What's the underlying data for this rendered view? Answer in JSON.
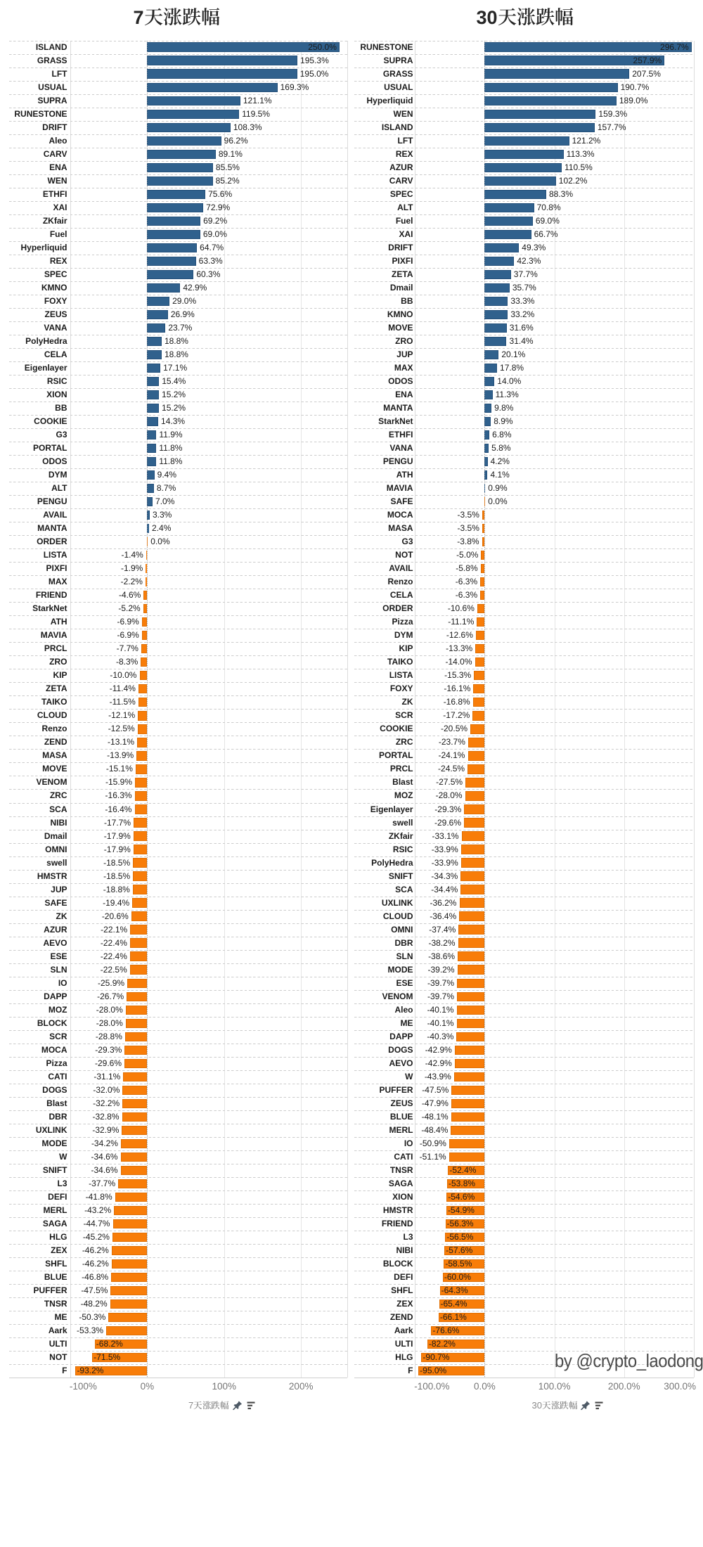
{
  "watermark": "by @crypto_laodong",
  "colors": {
    "positive_bar": "#30618D",
    "negative_bar": "#F87D09",
    "title_text": "#262626",
    "axis_text": "#757575",
    "caption_text": "#8A8A8A",
    "watermark_text": "#4A4A4A"
  },
  "chart_data": [
    {
      "type": "bar",
      "orientation": "horizontal",
      "title": "7天涨跌幅",
      "title_number": "7",
      "title_cjk": "天涨跌幅",
      "xlabel": "7天涨跌幅",
      "xlabel_number": "7",
      "xlabel_cjk": "天涨跌幅",
      "axis_icons": [
        "pin-icon",
        "sort-descending-icon"
      ],
      "x_tick_labels": [
        "-100%",
        "0%",
        "100%",
        "200%"
      ],
      "x_tick_values": [
        -100,
        0,
        100,
        200
      ],
      "xlim": [
        -100,
        260
      ],
      "grid": true,
      "value_suffix": "%",
      "categories": [
        "ISLAND",
        "GRASS",
        "LFT",
        "USUAL",
        "SUPRA",
        "RUNESTONE",
        "DRIFT",
        "Aleo",
        "CARV",
        "ENA",
        "WEN",
        "ETHFI",
        "XAI",
        "ZKfair",
        "Fuel",
        "Hyperliquid",
        "REX",
        "SPEC",
        "KMNO",
        "FOXY",
        "ZEUS",
        "VANA",
        "PolyHedra",
        "CELA",
        "Eigenlayer",
        "RSIC",
        "XION",
        "BB",
        "COOKIE",
        "G3",
        "PORTAL",
        "ODOS",
        "DYM",
        "ALT",
        "PENGU",
        "AVAIL",
        "MANTA",
        "ORDER",
        "LISTA",
        "PIXFI",
        "MAX",
        "FRIEND",
        "StarkNet",
        "ATH",
        "MAVIA",
        "PRCL",
        "ZRO",
        "KIP",
        "ZETA",
        "TAIKO",
        "CLOUD",
        "Renzo",
        "ZEND",
        "MASA",
        "MOVE",
        "VENOM",
        "ZRC",
        "SCA",
        "NIBI",
        "Dmail",
        "OMNI",
        "swell",
        "HMSTR",
        "JUP",
        "SAFE",
        "ZK",
        "AZUR",
        "AEVO",
        "ESE",
        "SLN",
        "IO",
        "DAPP",
        "MOZ",
        "BLOCK",
        "SCR",
        "MOCA",
        "Pizza",
        "CATI",
        "DOGS",
        "Blast",
        "DBR",
        "UXLINK",
        "MODE",
        "W",
        "SNIFT",
        "L3",
        "DEFI",
        "MERL",
        "SAGA",
        "HLG",
        "ZEX",
        "SHFL",
        "BLUE",
        "PUFFER",
        "TNSR",
        "ME",
        "Aark",
        "ULTI",
        "NOT",
        "F"
      ],
      "values": [
        250.0,
        195.3,
        195.0,
        169.3,
        121.1,
        119.5,
        108.3,
        96.2,
        89.1,
        85.5,
        85.2,
        75.6,
        72.9,
        69.2,
        69.0,
        64.7,
        63.3,
        60.3,
        42.9,
        29.0,
        26.9,
        23.7,
        18.8,
        18.8,
        17.1,
        15.4,
        15.2,
        15.2,
        14.3,
        11.9,
        11.8,
        11.8,
        9.4,
        8.7,
        7.0,
        3.3,
        2.4,
        0.0,
        -1.4,
        -1.9,
        -2.2,
        -4.6,
        -5.2,
        -6.9,
        -6.9,
        -7.7,
        -8.3,
        -10.0,
        -11.4,
        -11.5,
        -12.1,
        -12.5,
        -13.1,
        -13.9,
        -15.1,
        -15.9,
        -16.3,
        -16.4,
        -17.7,
        -17.9,
        -17.9,
        -18.5,
        -18.5,
        -18.8,
        -19.4,
        -20.6,
        -22.1,
        -22.4,
        -22.4,
        -22.5,
        -25.9,
        -26.7,
        -28.0,
        -28.0,
        -28.8,
        -29.3,
        -29.6,
        -31.1,
        -32.0,
        -32.2,
        -32.8,
        -32.9,
        -34.2,
        -34.6,
        -34.6,
        -37.7,
        -41.8,
        -43.2,
        -44.7,
        -45.2,
        -46.2,
        -46.2,
        -46.8,
        -47.5,
        -48.2,
        -50.3,
        -53.3,
        -68.2,
        -71.5,
        -93.2
      ]
    },
    {
      "type": "bar",
      "orientation": "horizontal",
      "title": "30天涨跌幅",
      "title_number": "30",
      "title_cjk": "天涨跌幅",
      "xlabel": "30天涨跌幅",
      "xlabel_number": "30",
      "xlabel_cjk": "天涨跌幅",
      "axis_icons": [
        "pin-icon",
        "sort-descending-icon"
      ],
      "x_tick_labels": [
        "-100.0%",
        "0.0%",
        "100.0%",
        "200.0%",
        "300.0%"
      ],
      "x_tick_values": [
        -100,
        0,
        100,
        200,
        300
      ],
      "xlim": [
        -100,
        300
      ],
      "grid": true,
      "value_suffix": "%",
      "categories": [
        "RUNESTONE",
        "SUPRA",
        "GRASS",
        "USUAL",
        "Hyperliquid",
        "WEN",
        "ISLAND",
        "LFT",
        "REX",
        "AZUR",
        "CARV",
        "SPEC",
        "ALT",
        "Fuel",
        "XAI",
        "DRIFT",
        "PIXFI",
        "ZETA",
        "Dmail",
        "BB",
        "KMNO",
        "MOVE",
        "ZRO",
        "JUP",
        "MAX",
        "ODOS",
        "ENA",
        "MANTA",
        "StarkNet",
        "ETHFI",
        "VANA",
        "PENGU",
        "ATH",
        "MAVIA",
        "SAFE",
        "MOCA",
        "MASA",
        "G3",
        "NOT",
        "AVAIL",
        "Renzo",
        "CELA",
        "ORDER",
        "Pizza",
        "DYM",
        "KIP",
        "TAIKO",
        "LISTA",
        "FOXY",
        "ZK",
        "SCR",
        "COOKIE",
        "ZRC",
        "PORTAL",
        "PRCL",
        "Blast",
        "MOZ",
        "Eigenlayer",
        "swell",
        "ZKfair",
        "RSIC",
        "PolyHedra",
        "SNIFT",
        "SCA",
        "UXLINK",
        "CLOUD",
        "OMNI",
        "DBR",
        "SLN",
        "MODE",
        "ESE",
        "VENOM",
        "Aleo",
        "ME",
        "DAPP",
        "DOGS",
        "AEVO",
        "W",
        "PUFFER",
        "ZEUS",
        "BLUE",
        "MERL",
        "IO",
        "CATI",
        "TNSR",
        "SAGA",
        "XION",
        "HMSTR",
        "FRIEND",
        "L3",
        "NIBI",
        "BLOCK",
        "DEFI",
        "SHFL",
        "ZEX",
        "ZEND",
        "Aark",
        "ULTI",
        "HLG",
        "F"
      ],
      "values": [
        296.7,
        257.9,
        207.5,
        190.7,
        189.0,
        159.3,
        157.7,
        121.2,
        113.3,
        110.5,
        102.2,
        88.3,
        70.8,
        69.0,
        66.7,
        49.3,
        42.3,
        37.7,
        35.7,
        33.3,
        33.2,
        31.6,
        31.4,
        20.1,
        17.8,
        14.0,
        11.3,
        9.8,
        8.9,
        6.8,
        5.8,
        4.2,
        4.1,
        0.9,
        0.0,
        -3.5,
        -3.5,
        -3.8,
        -5.0,
        -5.8,
        -6.3,
        -6.3,
        -10.6,
        -11.1,
        -12.6,
        -13.3,
        -14.0,
        -15.3,
        -16.1,
        -16.8,
        -17.2,
        -20.5,
        -23.7,
        -24.1,
        -24.5,
        -27.5,
        -28.0,
        -29.3,
        -29.6,
        -33.1,
        -33.9,
        -33.9,
        -34.3,
        -34.4,
        -36.2,
        -36.4,
        -37.4,
        -38.2,
        -38.6,
        -39.2,
        -39.7,
        -39.7,
        -40.1,
        -40.1,
        -40.3,
        -42.9,
        -42.9,
        -43.9,
        -47.5,
        -47.9,
        -48.1,
        -48.4,
        -50.9,
        -51.1,
        -52.4,
        -53.8,
        -54.6,
        -54.9,
        -56.3,
        -56.5,
        -57.6,
        -58.5,
        -60.0,
        -64.3,
        -65.4,
        -66.1,
        -76.6,
        -82.2,
        -90.7,
        -95.0
      ]
    }
  ]
}
